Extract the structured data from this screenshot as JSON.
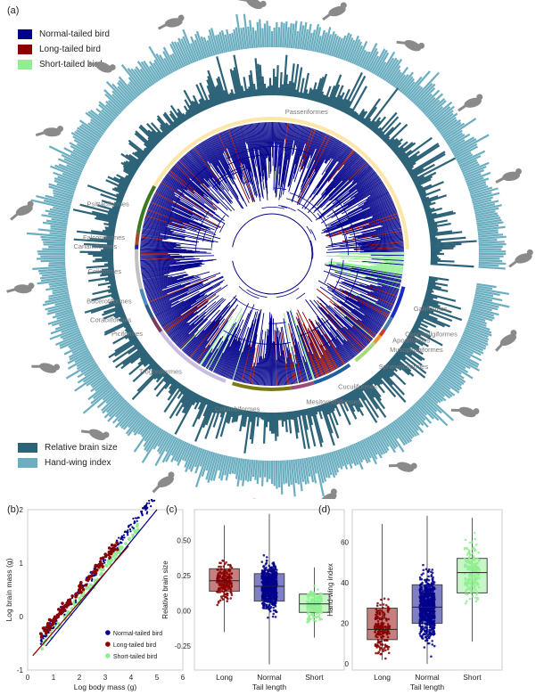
{
  "panel_labels": {
    "a": "(a)",
    "b": "(b)",
    "c": "(c)",
    "d": "(d)"
  },
  "legend_top": [
    {
      "label": "Normal-tailed bird",
      "color": "#00008b"
    },
    {
      "label": "Long-tailed bird",
      "color": "#8b0000"
    },
    {
      "label": "Short-tailed bird",
      "color": "#90ee90"
    }
  ],
  "legend_rings": [
    {
      "label": "Relative brain size",
      "color": "#2d6378"
    },
    {
      "label": "Hand-wing index",
      "color": "#6aaec0"
    }
  ],
  "orders": [
    {
      "name": "Passeriformes",
      "start": -60,
      "end": 88,
      "color": "#fde6a8"
    },
    {
      "name": "Galliformes",
      "start": 104,
      "end": 118,
      "color": "#1a2bc4"
    },
    {
      "name": "Caprimulgiformes",
      "start": 118,
      "end": 124,
      "color": "#4a7aa8"
    },
    {
      "name": "Apodiformes",
      "start": 124,
      "end": 127,
      "color": "#d9342b"
    },
    {
      "name": "Musophagiformes",
      "start": 127,
      "end": 131,
      "color": "#f0902a"
    },
    {
      "name": "Sphenisciformes",
      "start": 131,
      "end": 142,
      "color": "#a8d878"
    },
    {
      "name": "Cuculiformes",
      "start": 145,
      "end": 162,
      "color": "#1f5fa0"
    },
    {
      "name": "Mesitornithiformes",
      "start": 162,
      "end": 172,
      "color": "#9b4a7a"
    },
    {
      "name": "Columbiformes",
      "start": 172,
      "end": 197,
      "color": "#7a7a10"
    },
    {
      "name": "Trogoniformes",
      "start": 200,
      "end": 235,
      "color": "#c8bde0"
    },
    {
      "name": "Piciformes",
      "start": 235,
      "end": 242,
      "color": "#7a3a5a"
    },
    {
      "name": "Coraciiformes",
      "start": 242,
      "end": 248,
      "color": "#2a5a8a"
    },
    {
      "name": "Bucerotiformes",
      "start": 248,
      "end": 255,
      "color": "#4a8ac0"
    },
    {
      "name": "Coliiformes",
      "start": 255,
      "end": 272,
      "color": "#c0c0c0"
    },
    {
      "name": "Cariamiformes",
      "start": 272,
      "end": 274,
      "color": "#2020a0"
    },
    {
      "name": "Falconiformes",
      "start": 274,
      "end": 279,
      "color": "#a04a20"
    },
    {
      "name": "Psittaciformes",
      "start": 279,
      "end": 300,
      "color": "#3a7a20"
    }
  ],
  "chart_data": [
    {
      "type": "scatter",
      "panel": "(b)",
      "xlabel": "Log body mass (g)",
      "ylabel": "Log brain mass (g)",
      "xlim": [
        0,
        6
      ],
      "ylim": [
        -1,
        2
      ],
      "xticks": [
        "0",
        "1",
        "2",
        "3",
        "4",
        "5",
        "6"
      ],
      "yticks": [
        "-1",
        "0",
        "1",
        "2"
      ],
      "legend_position": "bottom-right",
      "series": [
        {
          "name": "Normal-tailed bird",
          "color": "#00008b",
          "fit": {
            "x": [
              0.7,
              5.0
            ],
            "y": [
              -0.55,
              2.0
            ]
          }
        },
        {
          "name": "Long-tailed bird",
          "color": "#8b0000",
          "fit": {
            "x": [
              0.2,
              3.9
            ],
            "y": [
              -0.73,
              1.32
            ]
          }
        },
        {
          "name": "Short-tailed bird",
          "color": "#90ee90"
        }
      ]
    },
    {
      "type": "box",
      "panel": "(c)",
      "xlabel": "Tail length",
      "ylabel": "Relative brain size",
      "ylim": [
        -0.42,
        0.72
      ],
      "yticks": [
        "-0.25",
        "0.00",
        "0.25",
        "0.50"
      ],
      "categories": [
        "Long",
        "Normal",
        "Short"
      ],
      "colors": [
        "#8b0000",
        "#00008b",
        "#90ee90"
      ],
      "boxes": [
        {
          "q1": 0.14,
          "median": 0.215,
          "q3": 0.3,
          "min": -0.15,
          "max": 0.61
        },
        {
          "q1": 0.07,
          "median": 0.175,
          "q3": 0.265,
          "min": -0.38,
          "max": 0.69
        },
        {
          "q1": -0.01,
          "median": 0.05,
          "q3": 0.12,
          "min": -0.19,
          "max": 0.31
        }
      ]
    },
    {
      "type": "box",
      "panel": "(d)",
      "xlabel": "Tail length",
      "ylabel": "Hand-wing index",
      "ylim": [
        -3,
        76
      ],
      "yticks": [
        "0",
        "20",
        "40",
        "60"
      ],
      "categories": [
        "Long",
        "Normal",
        "Short"
      ],
      "colors": [
        "#8b0000",
        "#00008b",
        "#90ee90"
      ],
      "boxes": [
        {
          "q1": 12,
          "median": 17,
          "q3": 27.5,
          "min": 2,
          "max": 69
        },
        {
          "q1": 20,
          "median": 28,
          "q3": 39,
          "min": 0,
          "max": 73
        },
        {
          "q1": 35,
          "median": 45,
          "q3": 52,
          "min": 11,
          "max": 72
        }
      ]
    }
  ]
}
